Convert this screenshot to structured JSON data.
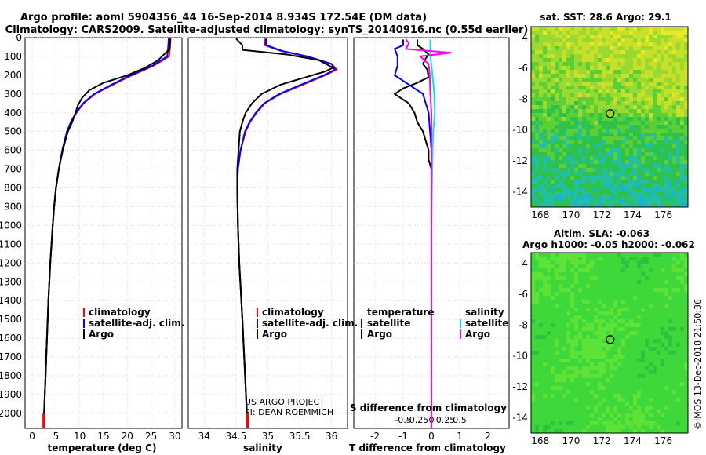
{
  "header": {
    "line1": "Argo profile: aoml 5904356_44 16-Sep-2014 8.934S 172.54E (DM data)",
    "line2": "Climatology: CARS2009. Satellite-adjusted climatology: synTS_20140916.nc (0.55d earlier)"
  },
  "credits": {
    "project": "US ARGO PROJECT",
    "pi": "PI: DEAN ROEMMICH",
    "imos": "©IMOS 13-Dec-2018 21:50:36"
  },
  "colors": {
    "climatology": "#ff0000",
    "satellite": "#0000ff",
    "argo": "#000000",
    "sal_sat": "#00e5ee",
    "sal_argo": "#ff00ff"
  },
  "chart_data": [
    {
      "type": "line",
      "title": "",
      "xlabel": "temperature (deg C)",
      "ylabel": "",
      "xlim": [
        -1.5,
        31.5
      ],
      "ylim": [
        2080,
        0
      ],
      "x_ticks": [
        0,
        5,
        10,
        15,
        20,
        25,
        30
      ],
      "y_ticks": [
        0,
        100,
        200,
        300,
        400,
        500,
        600,
        700,
        800,
        900,
        1000,
        1100,
        1200,
        1300,
        1400,
        1500,
        1600,
        1700,
        1800,
        1900,
        2000
      ],
      "legend": [
        "climatology",
        "satellite-adj. clim.",
        "Argo"
      ],
      "series": [
        {
          "name": "climatology",
          "depth": [
            5,
            50,
            100,
            150,
            200,
            250,
            300,
            350,
            400,
            450,
            500,
            600,
            700,
            800,
            900,
            1000,
            1200,
            1400,
            1600,
            1800,
            2000,
            2080
          ],
          "values": [
            29.1,
            29.0,
            28.8,
            25.5,
            21.0,
            17.0,
            13.2,
            10.8,
            9.3,
            8.2,
            7.4,
            6.4,
            5.6,
            5.0,
            4.6,
            4.3,
            3.8,
            3.4,
            3.1,
            2.8,
            2.5,
            2.4
          ]
        },
        {
          "name": "satellite-adj. clim.",
          "depth": [
            5,
            50,
            100,
            150,
            200,
            250,
            300,
            350,
            400,
            450,
            500,
            600,
            700,
            800,
            900,
            1000,
            1200,
            1400,
            1600,
            1800,
            2000,
            2080
          ],
          "values": [
            28.7,
            28.6,
            28.4,
            25.3,
            20.7,
            16.7,
            13.0,
            10.7,
            9.2,
            8.1,
            7.3,
            6.3,
            5.6,
            5.0,
            4.6,
            4.3,
            3.8,
            3.4,
            3.1,
            2.8,
            2.5,
            2.4
          ]
        },
        {
          "name": "Argo",
          "depth": [
            5,
            60,
            120,
            160,
            200,
            240,
            280,
            320,
            360,
            400,
            450,
            500,
            600,
            700,
            800,
            900,
            1000,
            1200,
            1400,
            1600,
            1800,
            2000,
            2050
          ],
          "values": [
            29.0,
            28.9,
            26.5,
            23.8,
            20.0,
            15.0,
            12.0,
            10.5,
            9.6,
            9.1,
            8.4,
            7.5,
            6.4,
            5.6,
            5.0,
            4.6,
            4.3,
            3.8,
            3.4,
            3.1,
            2.8,
            2.5,
            2.4
          ]
        }
      ]
    },
    {
      "type": "line",
      "xlabel": "salinity",
      "xlim": [
        33.75,
        36.25
      ],
      "ylim": [
        2080,
        0
      ],
      "x_ticks": [
        34,
        34.5,
        35,
        35.5,
        36
      ],
      "legend": [
        "climatology",
        "satellite-adj. clim.",
        "Argo"
      ],
      "series": [
        {
          "name": "climatology",
          "depth": [
            5,
            40,
            70,
            100,
            140,
            170,
            200,
            250,
            300,
            350,
            400,
            450,
            500,
            600,
            700,
            800,
            1000,
            1200,
            1500,
            2000,
            2080
          ],
          "values": [
            34.95,
            34.95,
            35.2,
            35.6,
            36.0,
            36.08,
            35.9,
            35.55,
            35.2,
            34.95,
            34.82,
            34.72,
            34.65,
            34.57,
            34.53,
            34.52,
            34.53,
            34.55,
            34.6,
            34.67,
            34.68
          ]
        },
        {
          "name": "satellite-adj. clim.",
          "depth": [
            5,
            40,
            70,
            100,
            140,
            170,
            200,
            250,
            300,
            350,
            400,
            450,
            500,
            600,
            700,
            800,
            1000,
            1200,
            1500,
            2000,
            2080
          ],
          "values": [
            34.97,
            34.97,
            35.22,
            35.62,
            36.0,
            36.05,
            35.88,
            35.52,
            35.18,
            34.94,
            34.81,
            34.71,
            34.64,
            34.57,
            34.53,
            34.52,
            34.53,
            34.55,
            34.6,
            34.67,
            34.68
          ]
        },
        {
          "name": "Argo",
          "depth": [
            5,
            40,
            65,
            90,
            120,
            160,
            180,
            210,
            250,
            300,
            350,
            400,
            450,
            500,
            600,
            700,
            800,
            1000,
            1200,
            1500,
            2000,
            2040
          ],
          "values": [
            34.5,
            34.6,
            34.6,
            35.3,
            35.8,
            36.02,
            35.9,
            35.6,
            35.2,
            34.9,
            34.75,
            34.65,
            34.6,
            34.56,
            34.54,
            34.52,
            34.52,
            34.53,
            34.55,
            34.6,
            34.67,
            34.68
          ]
        }
      ]
    },
    {
      "type": "line",
      "xlabel": "T difference from climatology",
      "secondary_xlabel": "S difference from climatology",
      "xlim": [
        -2.75,
        2.75
      ],
      "ylim": [
        2080,
        0
      ],
      "x_ticks": [
        -2,
        -1,
        0,
        1,
        2
      ],
      "secondary_x_ticks": [
        -0.5,
        -0.25,
        0,
        0.25,
        0.5
      ],
      "secondary_tick_labels": [
        "-0.5",
        "-0.25",
        "0",
        "0.25",
        "0.5"
      ],
      "legend_temperature_title": "temperature",
      "legend_salinity_title": "salinity",
      "legend": [
        "satellite",
        "Argo",
        "satellite",
        "Argo"
      ],
      "series": [
        {
          "name": "T satellite",
          "depth": [
            10,
            40,
            60,
            100,
            150,
            200,
            300,
            400,
            600,
            800,
            1000,
            1500,
            2000,
            2080
          ],
          "values": [
            -1.0,
            -1.0,
            -1.3,
            -1.2,
            -1.2,
            -1.3,
            -0.3,
            -0.1,
            0.0,
            0.0,
            0.0,
            0.0,
            0.0,
            0.0
          ]
        },
        {
          "name": "T Argo",
          "depth": [
            10,
            40,
            60,
            90,
            110,
            140,
            170,
            210,
            240,
            270,
            300,
            350,
            400,
            450,
            500,
            550,
            600,
            650,
            700,
            750,
            800,
            900,
            1000,
            1200,
            1500,
            2000
          ],
          "values": [
            -0.5,
            -0.5,
            -0.3,
            -0.1,
            -0.2,
            -0.3,
            -0.15,
            -0.1,
            -0.5,
            -1.0,
            -1.3,
            -0.8,
            -0.6,
            -0.5,
            -0.3,
            -0.2,
            -0.1,
            -0.1,
            0.0,
            0.0,
            0.0,
            0.0,
            0.0,
            0.0,
            0.0,
            0.0
          ]
        },
        {
          "name": "S satellite",
          "depth": [
            10,
            100,
            200,
            300,
            400,
            500,
            600,
            800,
            1000,
            1500,
            2000,
            2080
          ],
          "values": [
            -0.02,
            -0.02,
            0.02,
            0.05,
            0.06,
            0.03,
            0.02,
            0.01,
            0.0,
            0.0,
            0.0,
            0.0
          ]
        },
        {
          "name": "S Argo",
          "depth": [
            10,
            30,
            60,
            80,
            100,
            140,
            200,
            300,
            400,
            500,
            600,
            800,
            1000,
            1500,
            2000,
            2080
          ],
          "values": [
            -0.45,
            -0.4,
            -0.45,
            0.35,
            -0.2,
            -0.05,
            -0.03,
            -0.02,
            0.0,
            0.0,
            0.0,
            0.0,
            0.0,
            0.0,
            0.0,
            0.0
          ]
        }
      ]
    },
    {
      "type": "heatmap",
      "title": "sat. SST: 28.6 Argo: 29.1",
      "xlim": [
        167.4,
        177.6
      ],
      "ylim": [
        -15,
        -3.3
      ],
      "x_ticks": [
        168,
        170,
        172,
        174,
        176
      ],
      "y_ticks": [
        -4,
        -6,
        -8,
        -10,
        -12,
        -14
      ],
      "argo_position": [
        172.54,
        -8.934
      ]
    },
    {
      "type": "heatmap",
      "title_line1": "Altim. SLA: -0.063",
      "title_line2": "Argo h1000: -0.05 h2000: -0.062",
      "xlim": [
        167.4,
        177.6
      ],
      "ylim": [
        -15,
        -3.3
      ],
      "x_ticks": [
        168,
        170,
        172,
        174,
        176
      ],
      "y_ticks": [
        -4,
        -6,
        -8,
        -10,
        -12,
        -14
      ],
      "argo_position": [
        172.54,
        -8.934
      ]
    }
  ]
}
